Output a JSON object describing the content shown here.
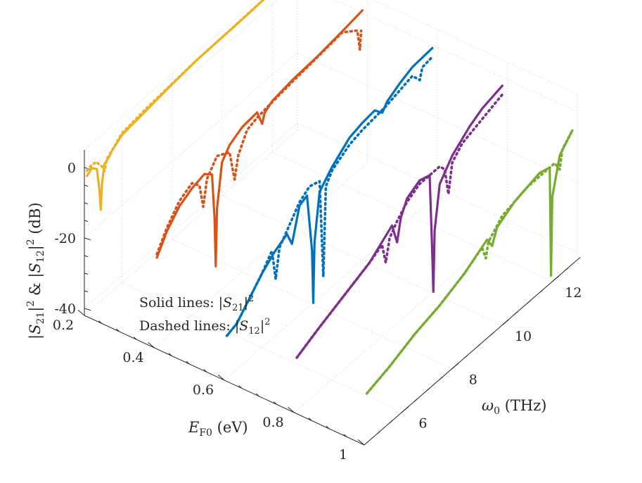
{
  "chart_data": {
    "type": "line3d",
    "title": "",
    "xlabel": "E_F0 (eV)",
    "ylabel": "ω0 (THz)",
    "zlabel": "|S21|^2 & |S12|^2 (dB)",
    "xlim": [
      0.2,
      1.0
    ],
    "ylim": [
      4.5,
      13.0
    ],
    "zlim": [
      -42,
      5
    ],
    "x_ticks": [
      {
        "value": 0.2,
        "label": "0.2"
      },
      {
        "value": 0.4,
        "label": "0.4"
      },
      {
        "value": 0.6,
        "label": "0.6"
      },
      {
        "value": 0.8,
        "label": "0.8"
      },
      {
        "value": 1.0,
        "label": "1"
      }
    ],
    "y_ticks": [
      {
        "value": 6,
        "label": "6"
      },
      {
        "value": 8,
        "label": "8"
      },
      {
        "value": 10,
        "label": "10"
      },
      {
        "value": 12,
        "label": "12"
      }
    ],
    "z_ticks": [
      {
        "value": 0,
        "label": "0"
      },
      {
        "value": -20,
        "label": "-20"
      },
      {
        "value": -40,
        "label": "-40"
      }
    ],
    "annotations": {
      "solid": "Solid lines: |S21|^2",
      "dashed": "Dashed lines: |S12|^2"
    },
    "series": [
      {
        "name": "|S21|^2 E_F0=0.2",
        "style": "solid",
        "color": "#EDB120",
        "x": 0.2,
        "points": [
          [
            4.6,
            -3
          ],
          [
            4.8,
            -2
          ],
          [
            5.0,
            -3.5
          ],
          [
            5.1,
            -10
          ],
          [
            5.15,
            -16
          ],
          [
            5.2,
            -9
          ],
          [
            5.3,
            -4
          ],
          [
            5.5,
            -3
          ],
          [
            5.6,
            -2
          ],
          [
            6,
            0
          ],
          [
            7,
            1
          ],
          [
            8,
            2
          ],
          [
            9,
            2.8
          ],
          [
            10,
            3
          ],
          [
            11,
            3.2
          ],
          [
            12,
            3.6
          ],
          [
            12.8,
            4
          ]
        ]
      },
      {
        "name": "|S12|^2 E_F0=0.2",
        "style": "dashed",
        "color": "#EDB120",
        "x": 0.2,
        "points": [
          [
            4.6,
            -1.5
          ],
          [
            4.8,
            -1
          ],
          [
            5.0,
            -1.5
          ],
          [
            5.1,
            -3
          ],
          [
            5.2,
            -4
          ],
          [
            5.3,
            -6
          ],
          [
            5.4,
            -3
          ],
          [
            5.6,
            -2
          ],
          [
            6,
            0.5
          ],
          [
            7,
            1.5
          ],
          [
            8,
            2.2
          ],
          [
            9,
            2.8
          ],
          [
            10,
            3
          ],
          [
            11,
            3.3
          ],
          [
            12,
            3.6
          ],
          [
            12.8,
            4
          ]
        ]
      },
      {
        "name": "|S21|^2 E_F0=0.4",
        "style": "solid",
        "color": "#D95319",
        "x": 0.4,
        "points": [
          [
            4.6,
            -17
          ],
          [
            5,
            -12
          ],
          [
            5.5,
            -8
          ],
          [
            6,
            -6
          ],
          [
            6.5,
            -5
          ],
          [
            6.8,
            -7
          ],
          [
            6.9,
            -20
          ],
          [
            6.95,
            -34
          ],
          [
            7.0,
            -18
          ],
          [
            7.2,
            -6
          ],
          [
            7.5,
            -3
          ],
          [
            8,
            -1
          ],
          [
            8.6,
            -0.5
          ],
          [
            8.8,
            -5
          ],
          [
            8.9,
            -2.5
          ],
          [
            9.2,
            -1
          ],
          [
            10,
            0
          ],
          [
            11,
            0.5
          ],
          [
            12,
            1.5
          ],
          [
            12.8,
            2.5
          ]
        ]
      },
      {
        "name": "|S12|^2 E_F0=0.4",
        "style": "dashed",
        "color": "#D95319",
        "x": 0.4,
        "points": [
          [
            4.6,
            -16
          ],
          [
            5,
            -11
          ],
          [
            5.5,
            -6.5
          ],
          [
            6,
            -4.5
          ],
          [
            6.3,
            -7
          ],
          [
            6.45,
            -14
          ],
          [
            6.6,
            -7
          ],
          [
            7,
            -3
          ],
          [
            7.5,
            -5
          ],
          [
            7.7,
            -14
          ],
          [
            7.85,
            -8
          ],
          [
            8.2,
            -3
          ],
          [
            8.6,
            -2
          ],
          [
            9,
            -1.5
          ],
          [
            10,
            -0.5
          ],
          [
            11,
            0.3
          ],
          [
            12,
            1.2
          ],
          [
            12.6,
            -2
          ],
          [
            12.7,
            -8
          ],
          [
            12.75,
            -3
          ]
        ]
      },
      {
        "name": "|S21|^2 E_F0=0.6",
        "style": "solid",
        "color": "#0072BD",
        "x": 0.6,
        "points": [
          [
            4.6,
            -30
          ],
          [
            5,
            -29
          ],
          [
            5.5,
            -25
          ],
          [
            6,
            -21
          ],
          [
            6.5,
            -18
          ],
          [
            7,
            -16
          ],
          [
            7.2,
            -20
          ],
          [
            7.3,
            -17
          ],
          [
            7.5,
            -11
          ],
          [
            7.8,
            -10
          ],
          [
            8.0,
            -27
          ],
          [
            8.05,
            -42
          ],
          [
            8.1,
            -25
          ],
          [
            8.3,
            -12
          ],
          [
            8.8,
            -8
          ],
          [
            9.5,
            -4
          ],
          [
            10,
            -3
          ],
          [
            10.5,
            -2.5
          ],
          [
            10.8,
            -5
          ],
          [
            11.0,
            -3
          ],
          [
            11.5,
            -1
          ],
          [
            12,
            0.5
          ],
          [
            12.8,
            1
          ]
        ]
      },
      {
        "name": "|S12|^2 E_F0=0.6",
        "style": "dashed",
        "color": "#0072BD",
        "x": 0.6,
        "points": [
          [
            4.6,
            -30
          ],
          [
            5,
            -29
          ],
          [
            5.5,
            -25
          ],
          [
            6,
            -21
          ],
          [
            6.4,
            -17
          ],
          [
            6.55,
            -26
          ],
          [
            6.7,
            -18
          ],
          [
            7,
            -15
          ],
          [
            7.5,
            -10
          ],
          [
            7.9,
            -8
          ],
          [
            8.3,
            -9
          ],
          [
            8.45,
            -37
          ],
          [
            8.55,
            -12
          ],
          [
            8.8,
            -9
          ],
          [
            9.5,
            -6
          ],
          [
            10,
            -5
          ],
          [
            10.5,
            -4.5
          ],
          [
            11,
            -4
          ],
          [
            11.5,
            -3
          ],
          [
            12,
            -2
          ],
          [
            12.3,
            -5
          ],
          [
            12.4,
            -2
          ],
          [
            12.8,
            -1.5
          ]
        ]
      },
      {
        "name": "|S21|^2 E_F0=0.8",
        "style": "solid",
        "color": "#7E2F8E",
        "x": 0.8,
        "points": [
          [
            4.6,
            -27
          ],
          [
            5.5,
            -24
          ],
          [
            6.5,
            -21
          ],
          [
            7.5,
            -18
          ],
          [
            8.4,
            -13
          ],
          [
            8.6,
            -19
          ],
          [
            8.75,
            -13
          ],
          [
            9,
            -9
          ],
          [
            9.5,
            -7
          ],
          [
            9.9,
            -8
          ],
          [
            10.0,
            -30
          ],
          [
            10.05,
            -42
          ],
          [
            10.1,
            -25
          ],
          [
            10.3,
            -13
          ],
          [
            10.8,
            -8
          ],
          [
            11.5,
            -4
          ],
          [
            12,
            -2
          ],
          [
            12.8,
            -0.5
          ]
        ]
      },
      {
        "name": "|S12|^2 E_F0=0.8",
        "style": "dashed",
        "color": "#7E2F8E",
        "x": 0.8,
        "points": [
          [
            4.6,
            -27
          ],
          [
            5.5,
            -24
          ],
          [
            6.5,
            -21
          ],
          [
            7.5,
            -18
          ],
          [
            8.0,
            -16
          ],
          [
            8.15,
            -22
          ],
          [
            8.3,
            -16
          ],
          [
            8.6,
            -13
          ],
          [
            9,
            -10
          ],
          [
            9.5,
            -8
          ],
          [
            10,
            -8
          ],
          [
            10.3,
            -8
          ],
          [
            10.5,
            -10
          ],
          [
            10.65,
            -18
          ],
          [
            10.8,
            -10
          ],
          [
            11.2,
            -7
          ],
          [
            12,
            -5
          ],
          [
            12.8,
            -3
          ]
        ]
      },
      {
        "name": "|S21|^2 E_F0=1",
        "style": "solid",
        "color": "#77AC30",
        "x": 1.0,
        "points": [
          [
            4.6,
            -28
          ],
          [
            5.5,
            -26
          ],
          [
            6.5,
            -23
          ],
          [
            7.5,
            -21
          ],
          [
            8.5,
            -18
          ],
          [
            9.4,
            -14
          ],
          [
            9.6,
            -17
          ],
          [
            9.8,
            -13
          ],
          [
            10.5,
            -10
          ],
          [
            11.5,
            -8
          ],
          [
            11.9,
            -9
          ],
          [
            11.95,
            -40
          ],
          [
            12.0,
            -18
          ],
          [
            12.3,
            -8
          ],
          [
            12.8,
            -4
          ]
        ]
      },
      {
        "name": "|S12|^2 E_F0=1",
        "style": "dashed",
        "color": "#77AC30",
        "x": 1.0,
        "points": [
          [
            4.6,
            -28
          ],
          [
            5.5,
            -26
          ],
          [
            6.5,
            -23
          ],
          [
            7.5,
            -21
          ],
          [
            8.5,
            -18
          ],
          [
            9.2,
            -15
          ],
          [
            9.35,
            -19
          ],
          [
            9.45,
            -15
          ],
          [
            10,
            -11
          ],
          [
            11,
            -9
          ],
          [
            11.8,
            -9
          ],
          [
            12.1,
            -9
          ],
          [
            12.3,
            -12
          ],
          [
            12.4,
            -7
          ],
          [
            12.8,
            -4
          ]
        ]
      }
    ]
  }
}
